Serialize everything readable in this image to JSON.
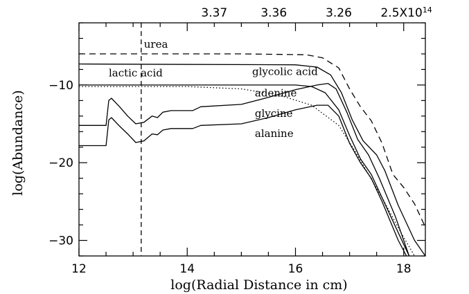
{
  "chart_data": {
    "type": "line",
    "xlabel": "log(Radial Distance in cm)",
    "ylabel": "log(Abundance)",
    "xlim": [
      12,
      18.4
    ],
    "ylim": [
      -32,
      -2
    ],
    "x_ticks": [
      12,
      14,
      16,
      18
    ],
    "y_ticks": [
      -10,
      -20,
      -30
    ],
    "x_tick_labels": [
      "12",
      "14",
      "16",
      "18"
    ],
    "y_tick_labels": [
      "−10",
      "−20",
      "−30"
    ],
    "top_axis_labels": [
      {
        "text": "3.37",
        "x": 14.5
      },
      {
        "text": "3.36",
        "x": 15.6
      },
      {
        "text": "3.26",
        "x": 16.8
      },
      {
        "text": "2.5X10",
        "sup": "14",
        "x": 18.05
      }
    ],
    "vline": {
      "x": 13.15,
      "style": "dashed"
    },
    "grid": false,
    "series": [
      {
        "name": "urea",
        "style": "dashed",
        "label_pos": [
          13.2,
          -5.2
        ],
        "points": [
          [
            12,
            -6
          ],
          [
            15,
            -6
          ],
          [
            16.2,
            -6.1
          ],
          [
            16.5,
            -6.5
          ],
          [
            16.8,
            -7.8
          ],
          [
            17.0,
            -10.5
          ],
          [
            17.2,
            -12.8
          ],
          [
            17.4,
            -14.6
          ],
          [
            17.6,
            -17.5
          ],
          [
            17.8,
            -21.5
          ],
          [
            18.0,
            -23.2
          ],
          [
            18.2,
            -25.3
          ],
          [
            18.4,
            -28.3
          ]
        ]
      },
      {
        "name": "glycolic acid",
        "style": "solid",
        "label_pos": [
          15.2,
          -8.7
        ],
        "points": [
          [
            12,
            -7.3
          ],
          [
            16.0,
            -7.4
          ],
          [
            16.4,
            -7.7
          ],
          [
            16.65,
            -8.7
          ],
          [
            16.85,
            -11
          ],
          [
            17.05,
            -14.5
          ],
          [
            17.25,
            -17.2
          ],
          [
            17.5,
            -19
          ],
          [
            17.65,
            -21
          ],
          [
            17.9,
            -25.5
          ],
          [
            18.2,
            -30
          ],
          [
            18.4,
            -32
          ]
        ]
      },
      {
        "name": "lactic acid",
        "style": "solid",
        "label_pos": [
          12.55,
          -8.9
        ],
        "points": [
          [
            12,
            -10
          ],
          [
            16.0,
            -10
          ],
          [
            16.3,
            -10.2
          ],
          [
            16.55,
            -11
          ],
          [
            16.8,
            -13.2
          ],
          [
            17.0,
            -16.5
          ],
          [
            17.2,
            -19.5
          ],
          [
            17.4,
            -21.5
          ],
          [
            17.6,
            -24.5
          ],
          [
            17.9,
            -29
          ],
          [
            18.1,
            -32
          ]
        ]
      },
      {
        "name": "adenine",
        "style": "dotted",
        "label_pos": [
          15.25,
          -11.5
        ],
        "points": [
          [
            12,
            -10.2
          ],
          [
            14.0,
            -10.2
          ],
          [
            15.0,
            -10.5
          ],
          [
            15.7,
            -11.3
          ],
          [
            16.3,
            -12.6
          ],
          [
            16.8,
            -15.2
          ],
          [
            17.1,
            -18.5
          ],
          [
            17.35,
            -21.5
          ],
          [
            17.6,
            -24.5
          ],
          [
            17.95,
            -29
          ],
          [
            18.2,
            -32
          ]
        ]
      },
      {
        "name": "glycine",
        "style": "solid",
        "label_pos": [
          15.25,
          -14.1
        ],
        "points": [
          [
            12,
            -15.2
          ],
          [
            12.5,
            -15.2
          ],
          [
            12.55,
            -12
          ],
          [
            12.6,
            -11.7
          ],
          [
            12.75,
            -12.8
          ],
          [
            12.9,
            -14
          ],
          [
            13.05,
            -15
          ],
          [
            13.2,
            -14.8
          ],
          [
            13.35,
            -14
          ],
          [
            13.45,
            -14.2
          ],
          [
            13.55,
            -13.5
          ],
          [
            13.7,
            -13.3
          ],
          [
            14.1,
            -13.3
          ],
          [
            14.25,
            -12.8
          ],
          [
            15.0,
            -12.5
          ],
          [
            15.5,
            -11.6
          ],
          [
            16.0,
            -10.6
          ],
          [
            16.4,
            -10
          ],
          [
            16.6,
            -9.8
          ],
          [
            16.75,
            -10.5
          ],
          [
            16.95,
            -13.5
          ],
          [
            17.15,
            -17
          ],
          [
            17.35,
            -19
          ],
          [
            17.55,
            -22
          ],
          [
            17.85,
            -27
          ],
          [
            18.1,
            -32
          ]
        ]
      },
      {
        "name": "alanine",
        "style": "solid",
        "label_pos": [
          15.25,
          -16.7
        ],
        "points": [
          [
            12,
            -17.8
          ],
          [
            12.5,
            -17.8
          ],
          [
            12.55,
            -14.5
          ],
          [
            12.6,
            -14.2
          ],
          [
            12.75,
            -15.3
          ],
          [
            12.9,
            -16.3
          ],
          [
            13.05,
            -17.4
          ],
          [
            13.2,
            -17.2
          ],
          [
            13.35,
            -16.3
          ],
          [
            13.45,
            -16.4
          ],
          [
            13.55,
            -15.8
          ],
          [
            13.7,
            -15.6
          ],
          [
            14.1,
            -15.6
          ],
          [
            14.25,
            -15.2
          ],
          [
            15.0,
            -15.0
          ],
          [
            15.5,
            -14.2
          ],
          [
            16.0,
            -13.2
          ],
          [
            16.4,
            -12.6
          ],
          [
            16.6,
            -12.6
          ],
          [
            16.8,
            -14
          ],
          [
            17.0,
            -17.5
          ],
          [
            17.2,
            -20
          ],
          [
            17.4,
            -22
          ],
          [
            17.6,
            -25
          ],
          [
            17.9,
            -30
          ],
          [
            18.05,
            -32
          ]
        ]
      }
    ]
  }
}
